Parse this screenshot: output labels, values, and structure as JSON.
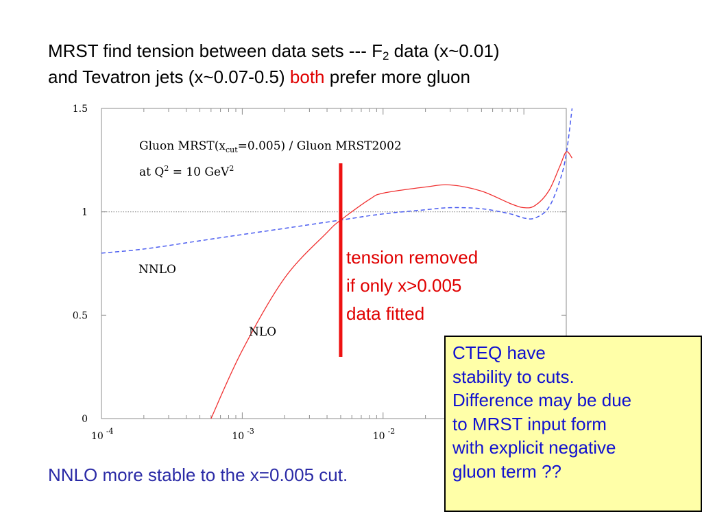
{
  "heading": {
    "line1_pre": "MRST find tension between data sets --- F",
    "line1_sub": "2",
    "line1_post": " data (x~0.01)",
    "line2_pre": "and Tevatron jets (x~0.07-0.5) ",
    "line2_red": "both",
    "line2_post": " prefer more gluon",
    "accent_color": "#e00000"
  },
  "chart_data": {
    "type": "line",
    "title_line1_pre": "Gluon MRST(x",
    "title_line1_sub": "cut",
    "title_line1_post": "=0.005) / Gluon MRST2002",
    "title_line2_pre": "at Q",
    "title_line2_sup": "2",
    "title_line2_mid": " = 10 GeV",
    "title_line2_sup2": "2",
    "x_scale": "log",
    "xlim": [
      0.0001,
      0.2
    ],
    "ylim": [
      0,
      1.5
    ],
    "y_ticks": [
      "0",
      "0.5",
      "1",
      "1.5"
    ],
    "x_ticks": [
      {
        "base": "10",
        "exp": "-4"
      },
      {
        "base": "10",
        "exp": "-3"
      },
      {
        "base": "10",
        "exp": "-2"
      }
    ],
    "reference_line": 1,
    "cut_marker_x": 0.005,
    "series": [
      {
        "name": "NNLO",
        "style": "dashed",
        "color": "#4a5cf0",
        "points": [
          [
            0.0001,
            0.8
          ],
          [
            0.0002,
            0.82
          ],
          [
            0.0005,
            0.86
          ],
          [
            0.001,
            0.89
          ],
          [
            0.002,
            0.92
          ],
          [
            0.005,
            0.96
          ],
          [
            0.01,
            0.99
          ],
          [
            0.02,
            1.01
          ],
          [
            0.03,
            1.02
          ],
          [
            0.05,
            1.015
          ],
          [
            0.08,
            0.99
          ],
          [
            0.1,
            0.97
          ],
          [
            0.12,
            0.97
          ],
          [
            0.15,
            1.02
          ],
          [
            0.18,
            1.15
          ],
          [
            0.2,
            1.28
          ],
          [
            0.22,
            1.5
          ]
        ]
      },
      {
        "name": "NLO",
        "style": "solid",
        "color": "#f03030",
        "points": [
          [
            0.0006,
            0.0
          ],
          [
            0.001,
            0.33
          ],
          [
            0.002,
            0.68
          ],
          [
            0.004,
            0.9
          ],
          [
            0.005,
            0.96
          ],
          [
            0.008,
            1.06
          ],
          [
            0.01,
            1.09
          ],
          [
            0.02,
            1.12
          ],
          [
            0.03,
            1.13
          ],
          [
            0.05,
            1.1
          ],
          [
            0.08,
            1.04
          ],
          [
            0.1,
            1.02
          ],
          [
            0.12,
            1.03
          ],
          [
            0.15,
            1.1
          ],
          [
            0.18,
            1.22
          ],
          [
            0.2,
            1.29
          ],
          [
            0.22,
            1.26
          ]
        ]
      }
    ]
  },
  "annotation": {
    "lines": [
      "tension removed",
      "if only x>0.005",
      "data fitted"
    ]
  },
  "cteq_box": {
    "lines": [
      "CTEQ have",
      "stability to cuts.",
      "Difference may be due",
      "to MRST input form",
      "with explicit negative",
      "gluon term ??"
    ]
  },
  "footer": {
    "text": "NNLO more stable to the x=0.005 cut."
  }
}
